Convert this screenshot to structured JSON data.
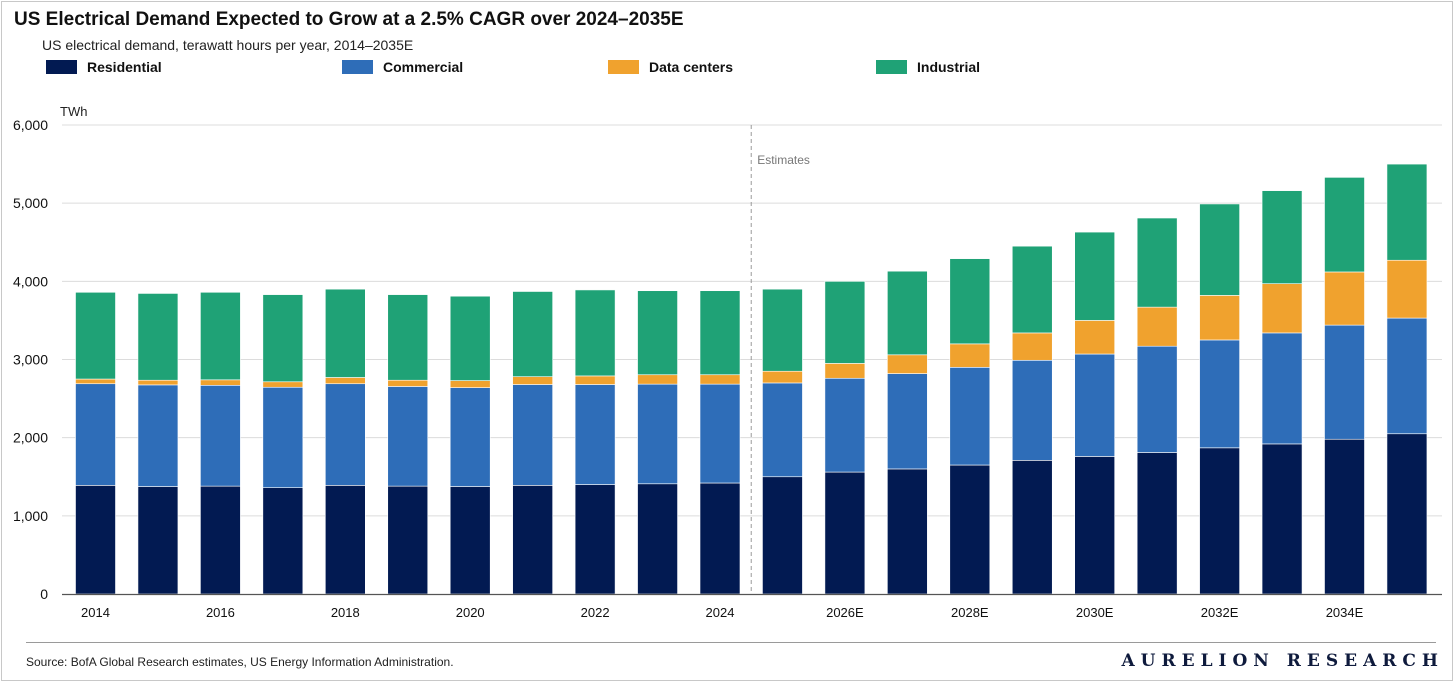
{
  "header": {
    "title": "US Electrical Demand Expected to Grow at a 2.5% CAGR over 2024–2035E",
    "subtitle": "US electrical demand, terawatt hours per year, 2014–2035E"
  },
  "footer": {
    "source": "Source: BofA Global Research estimates, US Energy Information Administration.",
    "brand": "AURELION RESEARCH"
  },
  "colors": {
    "residential": "#021a52",
    "commercial": "#2e6db8",
    "data_centers": "#f0a22e",
    "industrial": "#1fa276",
    "grid": "#dcdcdc",
    "axis": "#555555"
  },
  "chart_data": {
    "type": "bar",
    "stacked": true,
    "ylabel": "TWh",
    "ylim": [
      0,
      6000
    ],
    "yticks": [
      0,
      1000,
      2000,
      3000,
      4000,
      5000,
      6000
    ],
    "ytick_labels": [
      "0",
      "1,000",
      "2,000",
      "3,000",
      "4,000",
      "5,000",
      "6,000"
    ],
    "grid": true,
    "legend_position": "top",
    "annotation": "Estimates",
    "categories": [
      "2014",
      "2015",
      "2016",
      "2017",
      "2018",
      "2019",
      "2020",
      "2021",
      "2022",
      "2023",
      "2024",
      "2025E",
      "2026E",
      "2027E",
      "2028E",
      "2029E",
      "2030E",
      "2031E",
      "2032E",
      "2033E",
      "2034E",
      "2035E"
    ],
    "x_tick_labels": [
      "2014",
      "",
      "2016",
      "",
      "2018",
      "",
      "2020",
      "",
      "2022",
      "",
      "2024",
      "",
      "2026E",
      "",
      "2028E",
      "",
      "2030E",
      "",
      "2032E",
      "",
      "2034E",
      ""
    ],
    "series": [
      {
        "name": "Residential",
        "key": "residential",
        "values": [
          1390,
          1375,
          1380,
          1360,
          1390,
          1380,
          1375,
          1390,
          1400,
          1410,
          1420,
          1500,
          1560,
          1600,
          1650,
          1710,
          1760,
          1810,
          1870,
          1920,
          1980,
          2050
        ]
      },
      {
        "name": "Commercial",
        "key": "commercial",
        "values": [
          1300,
          1300,
          1290,
          1285,
          1300,
          1275,
          1265,
          1290,
          1280,
          1275,
          1265,
          1200,
          1200,
          1220,
          1250,
          1280,
          1310,
          1360,
          1380,
          1420,
          1460,
          1480
        ]
      },
      {
        "name": "Data centers",
        "key": "data_centers",
        "values": [
          60,
          60,
          70,
          70,
          80,
          80,
          90,
          100,
          110,
          120,
          120,
          150,
          190,
          240,
          300,
          350,
          430,
          500,
          570,
          630,
          680,
          740
        ]
      },
      {
        "name": "Industrial",
        "key": "industrial",
        "values": [
          1110,
          1110,
          1120,
          1115,
          1130,
          1095,
          1080,
          1090,
          1100,
          1075,
          1075,
          1050,
          1050,
          1070,
          1090,
          1110,
          1130,
          1140,
          1170,
          1190,
          1210,
          1230
        ]
      }
    ]
  }
}
